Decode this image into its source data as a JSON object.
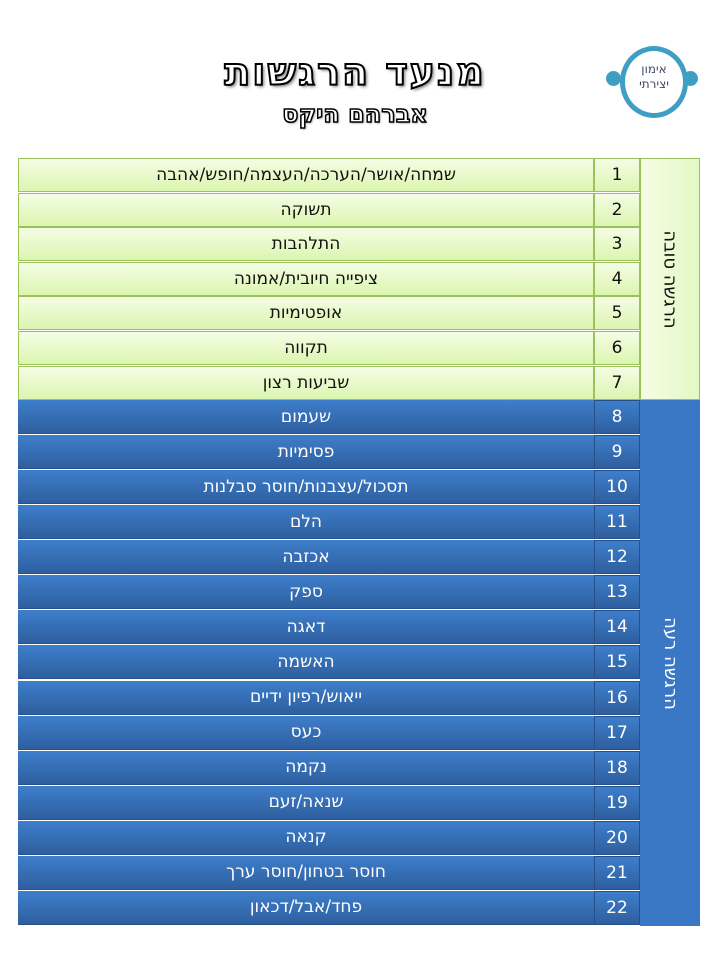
{
  "header": {
    "title": "מנעד הרגשות",
    "subtitle": "אברהם היקס",
    "logo_text": [
      "אימון",
      "יצירתי"
    ]
  },
  "colors": {
    "good": "#dcf5b0",
    "bad": "#3a78c6",
    "logo": "#3f9ec4"
  },
  "groups": {
    "good_label": "הרגשה טובה",
    "bad_label": "הרגשה רעה"
  },
  "emotions": [
    {
      "n": "1",
      "label": "שמחה/אושר/הערכה/העצמה/חופש/אהבה",
      "group": "good"
    },
    {
      "n": "2",
      "label": "תשוקה",
      "group": "good"
    },
    {
      "n": "3",
      "label": "התלהבות",
      "group": "good"
    },
    {
      "n": "4",
      "label": "ציפייה חיובית/אמונה",
      "group": "good"
    },
    {
      "n": "5",
      "label": "אופטימיות",
      "group": "good"
    },
    {
      "n": "6",
      "label": "תקווה",
      "group": "good"
    },
    {
      "n": "7",
      "label": "שביעות רצון",
      "group": "good"
    },
    {
      "n": "8",
      "label": "שעמום",
      "group": "bad"
    },
    {
      "n": "9",
      "label": "פסימיות",
      "group": "bad"
    },
    {
      "n": "10",
      "label": "תסכול/עצבנות/חוסר סבלנות",
      "group": "bad"
    },
    {
      "n": "11",
      "label": "הלם",
      "group": "bad"
    },
    {
      "n": "12",
      "label": "אכזבה",
      "group": "bad"
    },
    {
      "n": "13",
      "label": "ספק",
      "group": "bad"
    },
    {
      "n": "14",
      "label": "דאגה",
      "group": "bad"
    },
    {
      "n": "15",
      "label": "האשמה",
      "group": "bad"
    },
    {
      "n": "16",
      "label": "ייאוש/רפיון ידיים",
      "group": "bad"
    },
    {
      "n": "17",
      "label": "כעס",
      "group": "bad"
    },
    {
      "n": "18",
      "label": "נקמה",
      "group": "bad"
    },
    {
      "n": "19",
      "label": "שנאה/זעם",
      "group": "bad"
    },
    {
      "n": "20",
      "label": "קנאה",
      "group": "bad"
    },
    {
      "n": "21",
      "label": "חוסר בטחון/חוסר ערך",
      "group": "bad"
    },
    {
      "n": "22",
      "label": "פחד/אבל/דכאון",
      "group": "bad"
    }
  ]
}
